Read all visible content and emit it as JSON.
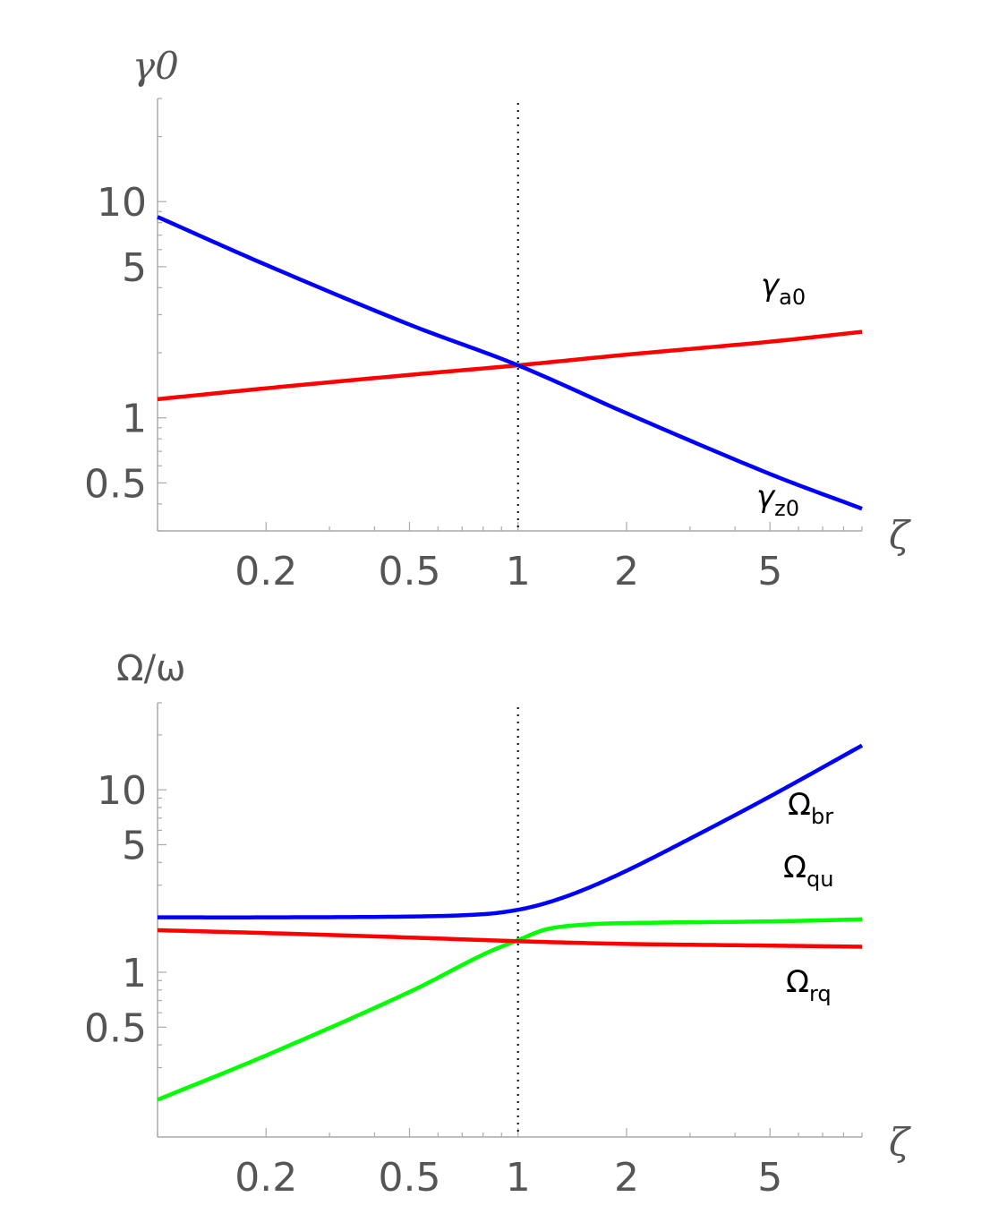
{
  "chart_data": [
    {
      "type": "line",
      "x_scale": "log",
      "y_scale": "log",
      "xlim": [
        0.1,
        9
      ],
      "ylim": [
        0.3,
        30
      ],
      "ylabel": "γ0",
      "xlabel": "ζ",
      "x_ticks": [
        {
          "value": 0.2,
          "label": "0.2"
        },
        {
          "value": 0.5,
          "label": "0.5"
        },
        {
          "value": 1,
          "label": "1"
        },
        {
          "value": 2,
          "label": "2"
        },
        {
          "value": 5,
          "label": "5"
        }
      ],
      "y_ticks": [
        {
          "value": 0.5,
          "label": "0.5"
        },
        {
          "value": 1,
          "label": "1"
        },
        {
          "value": 5,
          "label": "5"
        },
        {
          "value": 10,
          "label": "10"
        }
      ],
      "reference_line_x": 1,
      "series": [
        {
          "name": "γa0",
          "color": "#ff0000",
          "x": [
            0.1,
            0.2,
            0.5,
            1,
            2,
            5,
            9
          ],
          "y": [
            1.22,
            1.37,
            1.58,
            1.75,
            1.96,
            2.25,
            2.5
          ]
        },
        {
          "name": "γz0",
          "color": "#0000ff",
          "x": [
            0.1,
            0.2,
            0.5,
            1,
            2,
            5,
            9
          ],
          "y": [
            8.5,
            5.1,
            2.7,
            1.75,
            1.05,
            0.55,
            0.38
          ]
        }
      ],
      "annotations": [
        {
          "main": "γ",
          "sub": "a0",
          "series": "γa0"
        },
        {
          "main": "γ",
          "sub": "z0",
          "series": "γz0"
        }
      ]
    },
    {
      "type": "line",
      "x_scale": "log",
      "y_scale": "log",
      "xlim": [
        0.1,
        9
      ],
      "ylim": [
        0.125,
        30
      ],
      "ylabel": "Ω/ω",
      "xlabel": "ζ",
      "x_ticks": [
        {
          "value": 0.2,
          "label": "0.2"
        },
        {
          "value": 0.5,
          "label": "0.5"
        },
        {
          "value": 1,
          "label": "1"
        },
        {
          "value": 2,
          "label": "2"
        },
        {
          "value": 5,
          "label": "5"
        }
      ],
      "y_ticks": [
        {
          "value": 0.5,
          "label": "0.5"
        },
        {
          "value": 1,
          "label": "1"
        },
        {
          "value": 5,
          "label": "5"
        },
        {
          "value": 10,
          "label": "10"
        }
      ],
      "reference_line_x": 1,
      "series": [
        {
          "name": "Ωbr",
          "color": "#0000ff",
          "x": [
            0.1,
            0.2,
            0.5,
            0.8,
            1,
            1.2,
            1.5,
            2,
            3,
            5,
            9
          ],
          "y": [
            2.0,
            2.0,
            2.02,
            2.08,
            2.2,
            2.4,
            2.8,
            3.6,
            5.4,
            9.2,
            17.5
          ]
        },
        {
          "name": "Ωqu",
          "color": "#00ff00",
          "x": [
            0.1,
            0.2,
            0.5,
            0.8,
            1,
            1.2,
            1.5,
            2,
            5,
            9
          ],
          "y": [
            0.2,
            0.35,
            0.78,
            1.25,
            1.5,
            1.72,
            1.82,
            1.86,
            1.9,
            1.95
          ]
        },
        {
          "name": "Ωrq",
          "color": "#ff0000",
          "x": [
            0.1,
            0.2,
            0.5,
            1,
            2,
            5,
            9
          ],
          "y": [
            1.7,
            1.64,
            1.55,
            1.48,
            1.43,
            1.4,
            1.38
          ]
        }
      ],
      "annotations": [
        {
          "main": "Ω",
          "sub": "br",
          "series": "Ωbr"
        },
        {
          "main": "Ω",
          "sub": "qu",
          "series": "Ωqu"
        },
        {
          "main": "Ω",
          "sub": "rq",
          "series": "Ωrq"
        }
      ]
    }
  ]
}
